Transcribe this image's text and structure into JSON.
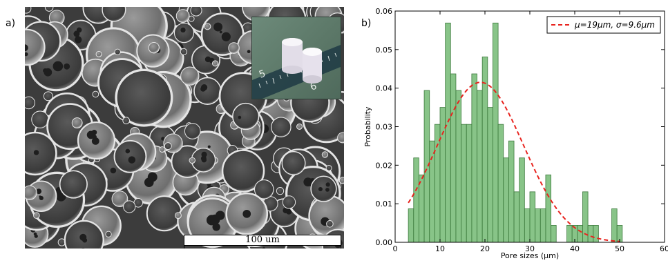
{
  "panels": {
    "a": {
      "label": "a)",
      "scale_bar": "100 um",
      "inset_ruler_numbers": [
        "5",
        "6"
      ]
    },
    "b": {
      "label": "b)"
    }
  },
  "chart_data": {
    "type": "bar",
    "xlabel": "Pore sizes (μm)",
    "ylabel": "Probability",
    "xlim": [
      0,
      60
    ],
    "ylim": [
      0,
      0.06
    ],
    "xticks": [
      0,
      10,
      20,
      30,
      40,
      50,
      60
    ],
    "xtick_labels": [
      "0",
      "10",
      "20",
      "30",
      "40",
      "50",
      "60"
    ],
    "yticks": [
      0,
      0.01,
      0.02,
      0.03,
      0.04,
      0.05,
      0.06
    ],
    "ytick_labels": [
      "0.00",
      "0.01",
      "0.02",
      "0.03",
      "0.04",
      "0.05",
      "0.06"
    ],
    "grid": false,
    "legend_position": "top-right",
    "bar_color": "#6ab56a",
    "bar_edge_color": "#3d7a3d",
    "bins": [
      {
        "x0": 2.94,
        "x1": 4.12,
        "value": 0.0087
      },
      {
        "x0": 4.12,
        "x1": 5.29,
        "value": 0.0219
      },
      {
        "x0": 5.29,
        "x1": 6.47,
        "value": 0.0175
      },
      {
        "x0": 6.47,
        "x1": 7.65,
        "value": 0.0394
      },
      {
        "x0": 7.65,
        "x1": 8.82,
        "value": 0.0263
      },
      {
        "x0": 8.82,
        "x1": 10.0,
        "value": 0.0306
      },
      {
        "x0": 10.0,
        "x1": 11.18,
        "value": 0.035
      },
      {
        "x0": 11.18,
        "x1": 12.35,
        "value": 0.0569
      },
      {
        "x0": 12.35,
        "x1": 13.53,
        "value": 0.0437
      },
      {
        "x0": 13.53,
        "x1": 14.71,
        "value": 0.0394
      },
      {
        "x0": 14.71,
        "x1": 15.88,
        "value": 0.0306
      },
      {
        "x0": 15.88,
        "x1": 17.06,
        "value": 0.0306
      },
      {
        "x0": 17.06,
        "x1": 18.24,
        "value": 0.0437
      },
      {
        "x0": 18.24,
        "x1": 19.41,
        "value": 0.0394
      },
      {
        "x0": 19.41,
        "x1": 20.59,
        "value": 0.0481
      },
      {
        "x0": 20.59,
        "x1": 21.76,
        "value": 0.035
      },
      {
        "x0": 21.76,
        "x1": 22.94,
        "value": 0.0569
      },
      {
        "x0": 22.94,
        "x1": 24.12,
        "value": 0.0306
      },
      {
        "x0": 24.12,
        "x1": 25.29,
        "value": 0.0219
      },
      {
        "x0": 25.29,
        "x1": 26.47,
        "value": 0.0263
      },
      {
        "x0": 26.47,
        "x1": 27.65,
        "value": 0.0131
      },
      {
        "x0": 27.65,
        "x1": 28.82,
        "value": 0.0219
      },
      {
        "x0": 28.82,
        "x1": 30.0,
        "value": 0.0087
      },
      {
        "x0": 30.0,
        "x1": 31.18,
        "value": 0.0131
      },
      {
        "x0": 31.18,
        "x1": 32.35,
        "value": 0.0087
      },
      {
        "x0": 32.35,
        "x1": 33.53,
        "value": 0.0087
      },
      {
        "x0": 33.53,
        "x1": 34.71,
        "value": 0.0175
      },
      {
        "x0": 34.71,
        "x1": 35.88,
        "value": 0.0044
      },
      {
        "x0": 38.24,
        "x1": 39.41,
        "value": 0.0044
      },
      {
        "x0": 39.41,
        "x1": 40.59,
        "value": 0.0044
      },
      {
        "x0": 40.59,
        "x1": 41.76,
        "value": 0.0044
      },
      {
        "x0": 41.76,
        "x1": 42.94,
        "value": 0.0131
      },
      {
        "x0": 42.94,
        "x1": 44.12,
        "value": 0.0044
      },
      {
        "x0": 44.12,
        "x1": 45.29,
        "value": 0.0044
      },
      {
        "x0": 48.24,
        "x1": 49.41,
        "value": 0.0087
      },
      {
        "x0": 49.41,
        "x1": 50.59,
        "value": 0.0044
      }
    ],
    "fit": {
      "type": "normal",
      "mu": 19,
      "sigma": 9.6,
      "x_range": [
        2.94,
        50.0
      ],
      "color": "#e8231e",
      "style": "dashed",
      "legend_label": "μ=19μm, σ=9.6μm"
    }
  }
}
